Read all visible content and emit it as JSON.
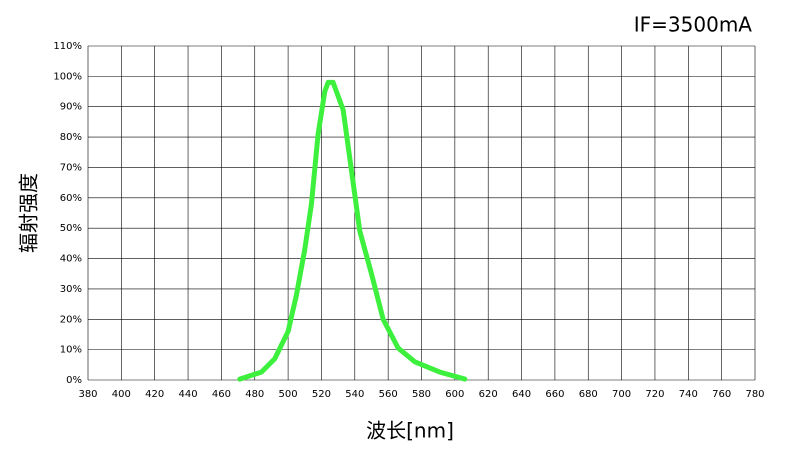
{
  "chart_data": {
    "type": "line",
    "title": "IF=3500mA",
    "x_label": "波长[nm]",
    "y_label": "辐射强度",
    "x": [
      471,
      484,
      492,
      500,
      505,
      510,
      514,
      518,
      522,
      524,
      527,
      533,
      536,
      543,
      550,
      557,
      566,
      576,
      591,
      606
    ],
    "values": [
      0.3,
      2.6,
      7,
      16,
      28,
      43,
      58,
      81,
      95,
      98,
      98,
      89,
      77,
      49,
      35,
      20,
      10.5,
      6,
      2.6,
      0.3
    ],
    "color": "#3df03d",
    "xlim": [
      380,
      780
    ],
    "xticks": [
      380,
      400,
      420,
      440,
      460,
      480,
      500,
      520,
      540,
      560,
      580,
      600,
      620,
      640,
      660,
      680,
      700,
      720,
      740,
      760,
      780
    ],
    "ylim": [
      0,
      110
    ],
    "yticks": [
      {
        "value": 0,
        "label": "0%"
      },
      {
        "value": 10,
        "label": "10%"
      },
      {
        "value": 20,
        "label": "20%"
      },
      {
        "value": 30,
        "label": "30%"
      },
      {
        "value": 40,
        "label": "40%"
      },
      {
        "value": 50,
        "label": "50%"
      },
      {
        "value": 60,
        "label": "60%"
      },
      {
        "value": 70,
        "label": "70%"
      },
      {
        "value": 80,
        "label": "80%"
      },
      {
        "value": 90,
        "label": "90%"
      },
      {
        "value": 100,
        "label": "100%"
      },
      {
        "value": 110,
        "label": "110%"
      }
    ],
    "grid": true
  }
}
